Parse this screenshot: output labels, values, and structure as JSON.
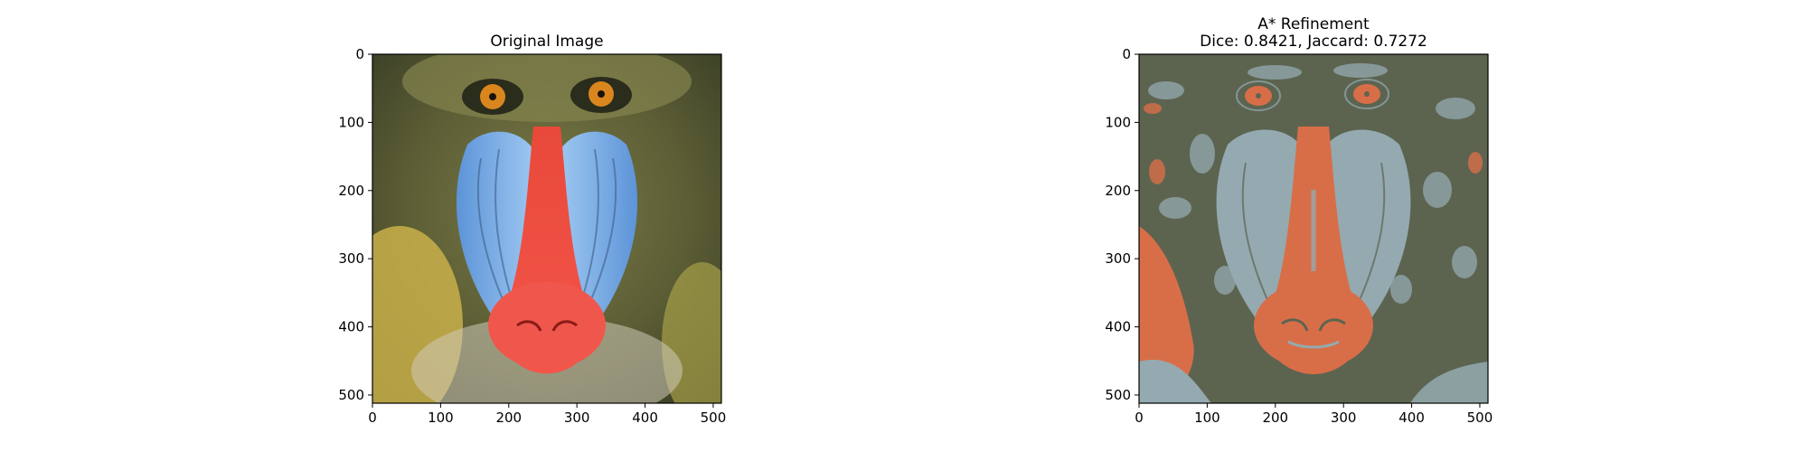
{
  "chart_data": [
    {
      "type": "image",
      "title_lines": [
        "Original Image"
      ],
      "x_ticks": [
        0,
        100,
        200,
        300,
        400,
        500
      ],
      "y_ticks": [
        0,
        100,
        200,
        300,
        400,
        500
      ],
      "xlim": [
        0,
        512
      ],
      "ylim": [
        512,
        0
      ],
      "image_content": "mandrill-face-photo",
      "colors": {
        "fur_olive": "#6b6a3a",
        "fur_yellow": "#c8b04a",
        "fur_dark": "#3d3f2a",
        "cheek_blue": "#6aa6e6",
        "cheek_blue_light": "#a9cdf2",
        "nose_red": "#f04a3a",
        "eye_orange": "#d9861e",
        "beard_white": "#dcd8c8"
      }
    },
    {
      "type": "image",
      "title_lines": [
        "A* Refinement",
        "Dice: 0.8421, Jaccard: 0.7272"
      ],
      "x_ticks": [
        0,
        100,
        200,
        300,
        400,
        500
      ],
      "y_ticks": [
        0,
        100,
        200,
        300,
        400,
        500
      ],
      "xlim": [
        0,
        512
      ],
      "ylim": [
        512,
        0
      ],
      "image_content": "mandrill-segmentation-3-classes",
      "colors": {
        "class_background": "#5c6450",
        "class_cheek": "#94aab0",
        "class_nose": "#d86e48"
      }
    }
  ]
}
